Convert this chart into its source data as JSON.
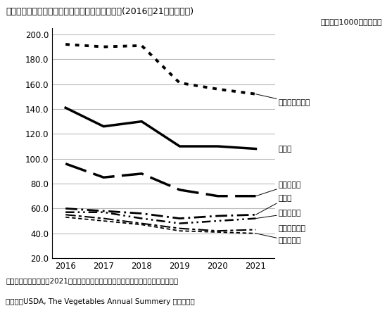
{
  "title": "（表２）米国における主な野菜の収穮面積の推移(2016～21年、注参照)",
  "subtitle": "（単位：1000エーカー）",
  "footnote1": "（注）「主な野菜」は2021年における米国の収穮面積の上位１位から７位の野菜。",
  "footnote2": "（資料）USDA, The Vegetables Annual Summery より作成。",
  "years": [
    2016,
    2017,
    2018,
    2019,
    2020,
    2021
  ],
  "series": [
    {
      "name": "スイートコーン",
      "values": [
        192,
        190,
        191,
        161,
        156,
        152
      ]
    },
    {
      "name": "トマト",
      "values": [
        141,
        126,
        130,
        110,
        110,
        108
      ]
    },
    {
      "name": "インゲン豆",
      "values": [
        96,
        85,
        88,
        75,
        70,
        70
      ]
    },
    {
      "name": "玉ねぎ",
      "values": [
        60,
        58,
        56,
        52,
        54,
        55
      ]
    },
    {
      "name": "エンドウ豆",
      "values": [
        57,
        57,
        52,
        48,
        50,
        52
      ]
    },
    {
      "name": "ブロッコリー",
      "values": [
        55,
        52,
        48,
        44,
        42,
        43
      ]
    },
    {
      "name": "結球レタス",
      "values": [
        53,
        50,
        47,
        42,
        41,
        40
      ]
    }
  ],
  "ylim": [
    20.0,
    205.0
  ],
  "yticks": [
    20.0,
    40.0,
    60.0,
    80.0,
    100.0,
    120.0,
    140.0,
    160.0,
    180.0,
    200.0
  ],
  "grid_color": "#bbbbbb",
  "label_y_positions": [
    145,
    108,
    79,
    68,
    56,
    44,
    34
  ]
}
